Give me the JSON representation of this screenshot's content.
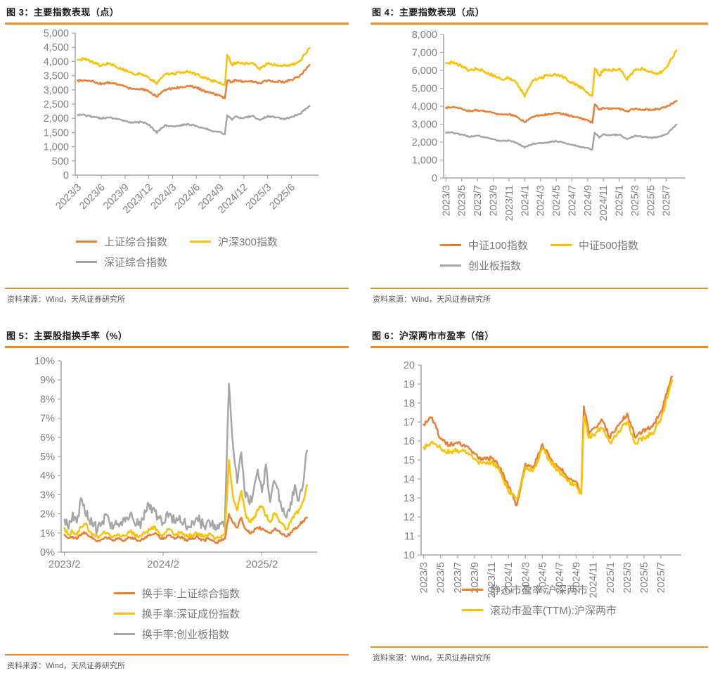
{
  "page": {
    "accent_orange": "#F28B1E",
    "series_orange": "#ED7D31",
    "series_yellow": "#FFC000",
    "series_gray": "#A6A6A6",
    "axis_color": "#A6A6A6",
    "tick_text_color": "#808080",
    "source_text_color": "#595959"
  },
  "figures": [
    {
      "title": "图 3：主要指数表现（点）",
      "source": "资料来源：Wind，天风证券研究所"
    },
    {
      "title": "图 4：主要指数表现（点）",
      "source": "资料来源：Wind，天风证券研究所"
    },
    {
      "title": "图 5：主要股指换手率（%）",
      "source": "资料来源：Wind，天风证券研究所"
    },
    {
      "title": "图 6：沪深两市市盈率（倍）",
      "source": "资料来源：Wind，天风证券研究所"
    }
  ],
  "chart_data": [
    {
      "type": "line",
      "title": "主要指数表现（点）",
      "ylim": [
        0,
        5000
      ],
      "y_step": 500,
      "y_format": "comma",
      "xlim": [
        -0.3,
        29.9
      ],
      "x_rot": 45,
      "grid": false,
      "legend_position": "bottom",
      "x_ticks": [
        {
          "m": 0,
          "label": "2023/3"
        },
        {
          "m": 3,
          "label": "2023/6"
        },
        {
          "m": 6,
          "label": "2023/9"
        },
        {
          "m": 9,
          "label": "2023/12"
        },
        {
          "m": 12,
          "label": "2024/3"
        },
        {
          "m": 15,
          "label": "2024/6"
        },
        {
          "m": 18,
          "label": "2024/9"
        },
        {
          "m": 21,
          "label": "2024/12"
        },
        {
          "m": 24,
          "label": "2025/3"
        },
        {
          "m": 27,
          "label": "2025/6"
        }
      ],
      "x": [
        0,
        1,
        2,
        3,
        4,
        5,
        6,
        7,
        8,
        9,
        10,
        11,
        12,
        13,
        14,
        15,
        16,
        17,
        18,
        18.6,
        18.9,
        19.5,
        20,
        21,
        22,
        23,
        24,
        25,
        26,
        27,
        28,
        29.3
      ],
      "series": [
        {
          "name": "深证综合指数",
          "color": "#A6A6A6",
          "noise": 30,
          "values": [
            2130,
            2100,
            2050,
            2000,
            2030,
            1970,
            1900,
            1840,
            1870,
            1780,
            1490,
            1750,
            1720,
            1760,
            1790,
            1740,
            1650,
            1560,
            1510,
            1450,
            2100,
            1950,
            2060,
            2000,
            2090,
            1930,
            2070,
            2040,
            1980,
            2050,
            2140,
            2430
          ]
        },
        {
          "name": "上证综合指数",
          "color": "#ED7D31",
          "noise": 35,
          "values": [
            3320,
            3350,
            3290,
            3210,
            3260,
            3190,
            3110,
            3020,
            3040,
            2940,
            2770,
            2990,
            3060,
            3100,
            3130,
            3090,
            2960,
            2880,
            2790,
            2700,
            3340,
            3250,
            3350,
            3280,
            3310,
            3240,
            3330,
            3300,
            3280,
            3360,
            3460,
            3880
          ]
        },
        {
          "name": "沪深300指数",
          "color": "#FFC000",
          "noise": 45,
          "values": [
            4050,
            4100,
            3950,
            3850,
            3950,
            3790,
            3690,
            3560,
            3580,
            3430,
            3220,
            3540,
            3580,
            3600,
            3640,
            3540,
            3430,
            3320,
            3250,
            3150,
            4250,
            3880,
            3980,
            3920,
            3960,
            3730,
            3920,
            3880,
            3850,
            3880,
            3990,
            4470
          ]
        }
      ],
      "legend_rows": [
        [
          {
            "label": "上证综合指数",
            "color": "#ED7D31"
          },
          {
            "label": "沪深300指数",
            "color": "#FFC000"
          }
        ],
        [
          {
            "label": "深证综合指数",
            "color": "#A6A6A6"
          }
        ]
      ]
    },
    {
      "type": "line",
      "title": "主要指数表现（点）",
      "ylim": [
        0,
        8000
      ],
      "y_step": 1000,
      "y_format": "comma",
      "xlim": [
        -0.3,
        29.9
      ],
      "x_rot": 90,
      "grid": false,
      "legend_position": "bottom",
      "x_ticks": [
        {
          "m": 0,
          "label": "2023/3"
        },
        {
          "m": 2,
          "label": "2023/5"
        },
        {
          "m": 4,
          "label": "2023/7"
        },
        {
          "m": 6,
          "label": "2023/9"
        },
        {
          "m": 8,
          "label": "2023/11"
        },
        {
          "m": 10,
          "label": "2024/1"
        },
        {
          "m": 12,
          "label": "2024/3"
        },
        {
          "m": 14,
          "label": "2024/5"
        },
        {
          "m": 16,
          "label": "2024/7"
        },
        {
          "m": 18,
          "label": "2024/9"
        },
        {
          "m": 20,
          "label": "2024/11"
        },
        {
          "m": 22,
          "label": "2025/1"
        },
        {
          "m": 24,
          "label": "2025/3"
        },
        {
          "m": 26,
          "label": "2025/5"
        },
        {
          "m": 28,
          "label": "2025/7"
        }
      ],
      "x": [
        0,
        1,
        2,
        3,
        4,
        5,
        6,
        7,
        8,
        9,
        10,
        11,
        12,
        13,
        14,
        15,
        16,
        17,
        18,
        18.6,
        18.9,
        19.5,
        20,
        21,
        22,
        23,
        24,
        25,
        26,
        27,
        28,
        29.3
      ],
      "series": [
        {
          "name": "创业板指数",
          "color": "#A6A6A6",
          "noise": 35,
          "values": [
            2550,
            2500,
            2420,
            2300,
            2360,
            2250,
            2150,
            2050,
            2080,
            1950,
            1700,
            1900,
            1950,
            2000,
            2050,
            1980,
            1850,
            1750,
            1660,
            1600,
            2520,
            2250,
            2420,
            2380,
            2420,
            2150,
            2350,
            2300,
            2250,
            2300,
            2420,
            2980
          ]
        },
        {
          "name": "中证100指数",
          "color": "#ED7D31",
          "noise": 45,
          "values": [
            3900,
            3980,
            3850,
            3720,
            3780,
            3700,
            3620,
            3520,
            3560,
            3400,
            3120,
            3400,
            3500,
            3560,
            3620,
            3560,
            3440,
            3350,
            3200,
            3080,
            4120,
            3780,
            3900,
            3850,
            3880,
            3720,
            3850,
            3820,
            3800,
            3850,
            3950,
            4300
          ]
        },
        {
          "name": "中证500指数",
          "color": "#FFC000",
          "noise": 80,
          "values": [
            6400,
            6450,
            6200,
            6000,
            6100,
            5900,
            5700,
            5500,
            5600,
            5300,
            4560,
            5400,
            5600,
            5700,
            5750,
            5600,
            5300,
            5100,
            4750,
            4550,
            6150,
            5700,
            6050,
            6000,
            6100,
            5500,
            6000,
            6100,
            5900,
            5800,
            6150,
            7100
          ]
        }
      ],
      "legend_rows": [
        [
          {
            "label": "中证100指数",
            "color": "#ED7D31"
          },
          {
            "label": "中证500指数",
            "color": "#FFC000"
          }
        ],
        [
          {
            "label": "创业板指数",
            "color": "#A6A6A6"
          }
        ]
      ]
    },
    {
      "type": "line",
      "title": "主要股指换手率（%）",
      "ylim": [
        0,
        10
      ],
      "y_step": 1,
      "y_format": "pct",
      "xlim": [
        -0.4,
        30.2
      ],
      "x_rot": 0,
      "grid": false,
      "legend_position": "bottom",
      "y_clamp_min": 0.35,
      "x_ticks": [
        {
          "m": 0,
          "label": "2023/2"
        },
        {
          "m": 12,
          "label": "2024/2"
        },
        {
          "m": 24,
          "label": "2025/2"
        }
      ],
      "x_start": 0,
      "x_step": 0.5,
      "series": [
        {
          "name": "换手率:创业板指数",
          "color": "#A6A6A6",
          "noise": 0.3,
          "values": [
            1.8,
            1.3,
            2.0,
            1.5,
            2.8,
            2.1,
            1.7,
            1.4,
            1.2,
            1.5,
            1.9,
            1.5,
            1.3,
            1.6,
            1.4,
            1.7,
            2.0,
            1.6,
            1.4,
            1.6,
            2.3,
            2.4,
            2.1,
            1.7,
            1.5,
            2.2,
            1.9,
            1.6,
            1.8,
            1.6,
            1.4,
            1.6,
            1.8,
            1.6,
            1.4,
            1.6,
            1.5,
            1.3,
            1.4,
            1.6,
            8.7,
            5.5,
            3.5,
            5.2,
            3.0,
            2.5,
            3.2,
            4.3,
            3.0,
            4.6,
            2.7,
            3.7,
            3.2,
            2.2,
            1.9,
            2.6,
            3.4,
            2.8,
            3.6,
            5.3
          ]
        },
        {
          "name": "换手率:深证成份指数",
          "color": "#FFC000",
          "noise": 0.12,
          "values": [
            1.2,
            0.9,
            1.1,
            0.9,
            1.3,
            1.5,
            1.1,
            0.9,
            0.8,
            0.9,
            1.0,
            0.9,
            0.8,
            0.9,
            0.8,
            0.9,
            1.1,
            0.9,
            0.8,
            0.9,
            1.1,
            1.2,
            1.3,
            1.0,
            0.9,
            1.2,
            1.1,
            0.9,
            1.0,
            0.9,
            0.8,
            0.9,
            1.0,
            0.9,
            0.8,
            0.9,
            0.8,
            0.7,
            0.8,
            0.9,
            4.8,
            2.8,
            2.2,
            3.2,
            2.0,
            1.6,
            1.8,
            2.2,
            2.4,
            1.9,
            1.6,
            2.0,
            1.8,
            1.4,
            1.2,
            1.6,
            2.0,
            2.2,
            2.6,
            3.5
          ]
        },
        {
          "name": "换手率:上证综合指数",
          "color": "#ED7D31",
          "noise": 0.08,
          "values": [
            0.9,
            0.7,
            0.8,
            0.7,
            0.9,
            1.0,
            0.8,
            0.7,
            0.6,
            0.7,
            0.8,
            0.7,
            0.6,
            0.7,
            0.6,
            0.7,
            0.8,
            0.7,
            0.6,
            0.7,
            0.8,
            0.9,
            1.0,
            0.8,
            0.7,
            0.9,
            0.8,
            0.7,
            0.8,
            0.7,
            0.6,
            0.7,
            0.8,
            0.7,
            0.6,
            0.7,
            0.6,
            0.5,
            0.6,
            0.7,
            2.0,
            1.5,
            1.3,
            1.8,
            1.2,
            1.0,
            1.1,
            1.3,
            1.2,
            1.1,
            1.0,
            1.2,
            1.1,
            0.9,
            0.8,
            1.0,
            1.2,
            1.4,
            1.6,
            1.8
          ]
        }
      ],
      "legend_rows": [
        [
          {
            "label": "换手率:上证综合指数",
            "color": "#ED7D31"
          }
        ],
        [
          {
            "label": "换手率:深证成份指数",
            "color": "#FFC000"
          }
        ],
        [
          {
            "label": "换手率:创业板指数",
            "color": "#A6A6A6"
          }
        ]
      ]
    },
    {
      "type": "line",
      "title": "沪深两市市盈率（倍）",
      "ylim": [
        10,
        20
      ],
      "y_step": 1,
      "y_format": "plain",
      "xlim": [
        -0.3,
        29.9
      ],
      "x_rot": 90,
      "grid": false,
      "legend_position": "bottom",
      "x_ticks": [
        {
          "m": 0,
          "label": "2023/3"
        },
        {
          "m": 2,
          "label": "2023/5"
        },
        {
          "m": 4,
          "label": "2023/7"
        },
        {
          "m": 6,
          "label": "2023/9"
        },
        {
          "m": 8,
          "label": "2023/11"
        },
        {
          "m": 10,
          "label": "2024/1"
        },
        {
          "m": 12,
          "label": "2024/3"
        },
        {
          "m": 14,
          "label": "2024/5"
        },
        {
          "m": 16,
          "label": "2024/7"
        },
        {
          "m": 18,
          "label": "2024/9"
        },
        {
          "m": 20,
          "label": "2024/11"
        },
        {
          "m": 22,
          "label": "2025/1"
        },
        {
          "m": 24,
          "label": "2025/3"
        },
        {
          "m": 26,
          "label": "2025/5"
        },
        {
          "m": 28,
          "label": "2025/7"
        }
      ],
      "x": [
        0,
        1,
        2,
        3,
        4,
        5,
        6,
        7,
        8,
        9,
        10,
        11,
        12,
        13,
        14,
        15,
        16,
        17,
        18,
        18.6,
        18.9,
        19.5,
        20,
        21,
        22,
        23,
        24,
        25,
        26,
        27,
        28,
        29.3
      ],
      "series": [
        {
          "name": "静态市盈率:沪深两市",
          "color": "#ED7D31",
          "noise": 0.13,
          "values": [
            16.9,
            17.2,
            16.1,
            15.8,
            15.9,
            15.7,
            15.3,
            15.0,
            15.1,
            14.6,
            13.6,
            12.6,
            14.8,
            14.7,
            15.8,
            15.1,
            14.6,
            14.1,
            13.8,
            13.3,
            17.8,
            16.4,
            16.6,
            17.1,
            16.2,
            16.8,
            17.4,
            16.2,
            16.6,
            16.8,
            17.5,
            19.4
          ]
        },
        {
          "name": "滚动市盈率(TTM):沪深两市",
          "color": "#FFC000",
          "noise": 0.13,
          "values": [
            15.6,
            16.0,
            15.6,
            15.4,
            15.5,
            15.4,
            15.0,
            14.8,
            14.9,
            14.4,
            13.4,
            12.9,
            14.6,
            14.5,
            15.6,
            14.9,
            14.4,
            13.9,
            13.6,
            13.2,
            17.3,
            16.1,
            16.3,
            16.7,
            15.9,
            16.5,
            17.0,
            15.9,
            16.2,
            16.4,
            17.1,
            19.2
          ]
        }
      ],
      "legend_rows": [
        [
          {
            "label": "静态市盈率:沪深两市",
            "color": "#ED7D31"
          }
        ],
        [
          {
            "label": "滚动市盈率(TTM):沪深两市",
            "color": "#FFC000"
          }
        ]
      ]
    }
  ]
}
